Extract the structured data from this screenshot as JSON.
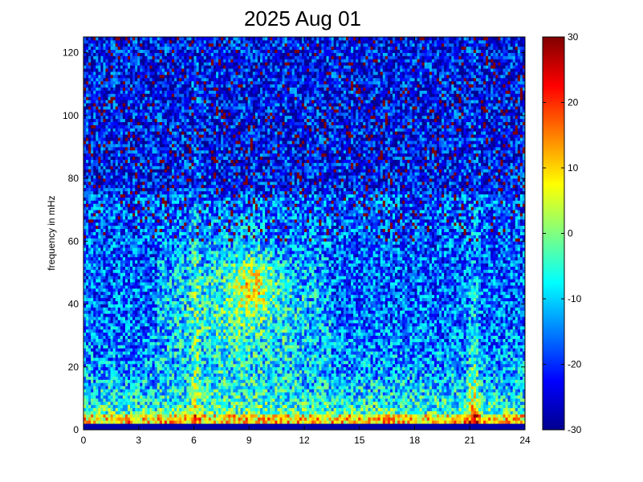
{
  "chart_data": {
    "type": "heatmap",
    "title": "2025 Aug 01",
    "xlabel": "",
    "ylabel": "frequency in mHz",
    "xlim": [
      0,
      24
    ],
    "ylim": [
      0,
      125
    ],
    "x_ticks": [
      "0",
      "3",
      "6",
      "9",
      "12",
      "15",
      "18",
      "21",
      "24"
    ],
    "y_ticks": [
      "0",
      "20",
      "40",
      "60",
      "80",
      "100",
      "120"
    ],
    "colorbar": {
      "range": [
        -30,
        30
      ],
      "ticks": [
        "30",
        "20",
        "10",
        "0",
        "-10",
        "-20",
        "-30"
      ],
      "colormap": "jet",
      "stops": [
        "#00008f",
        "#0000ff",
        "#00ffff",
        "#ffff00",
        "#ff0000",
        "#800000"
      ]
    },
    "grid": false,
    "features": [
      {
        "frequency_band_mHz": [
          0,
          10
        ],
        "hours": [
          0,
          24
        ],
        "level": 10
      },
      {
        "frequency_band_mHz": [
          30,
          60
        ],
        "hours": [
          4,
          13
        ],
        "level": 0
      },
      {
        "frequency_band_mHz": [
          40,
          55
        ],
        "hours": [
          8,
          10.5
        ],
        "level": 12
      },
      {
        "frequency_band_mHz": [
          0,
          70
        ],
        "hours": [
          21,
          21.6
        ],
        "level": 5
      }
    ]
  }
}
